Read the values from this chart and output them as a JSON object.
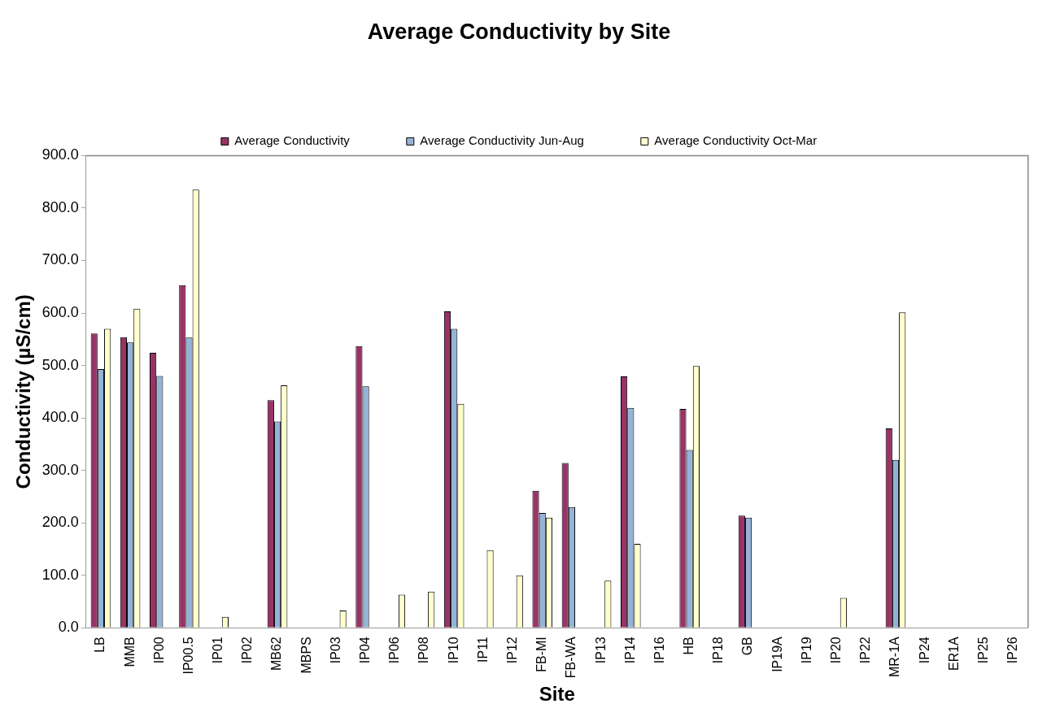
{
  "chart_data": {
    "type": "bar",
    "title": "Average Conductivity by Site",
    "xlabel": "Site",
    "ylabel": "Conductivity (µS/cm)",
    "categories": [
      "LB",
      "MMB",
      "IP00",
      "IP00.5",
      "IP01",
      "IP02",
      "MB62",
      "MBPS",
      "IP03",
      "IP04",
      "IP06",
      "IP08",
      "IP10",
      "IP11",
      "IP12",
      "FB-MI",
      "FB-WA",
      "IP13",
      "IP14",
      "IP16",
      "HB",
      "IP18",
      "GB",
      "IP19A",
      "IP19",
      "IP20",
      "IP22",
      "MR-1A",
      "IP24",
      "ER1A",
      "IP25",
      "IP26"
    ],
    "series": [
      {
        "name": "Average Conductivity",
        "color": "#993366",
        "values": [
          561,
          554,
          524,
          653,
          null,
          null,
          434,
          null,
          null,
          537,
          null,
          null,
          603,
          null,
          null,
          261,
          314,
          null,
          479,
          null,
          417,
          null,
          214,
          null,
          null,
          null,
          null,
          380,
          null,
          null,
          null,
          null
        ]
      },
      {
        "name": "Average Conductivity Jun-Aug",
        "color": "#95b3d7",
        "values": [
          493,
          544,
          480,
          553,
          null,
          null,
          393,
          null,
          null,
          460,
          null,
          null,
          570,
          null,
          null,
          219,
          230,
          null,
          419,
          null,
          339,
          null,
          210,
          null,
          null,
          null,
          null,
          320,
          null,
          null,
          null,
          null
        ]
      },
      {
        "name": "Average Conductivity Oct-Mar",
        "color": "#ffffcc",
        "values": [
          570,
          608,
          null,
          835,
          21,
          null,
          462,
          null,
          33,
          null,
          63,
          69,
          427,
          148,
          100,
          210,
          null,
          90,
          160,
          null,
          499,
          null,
          null,
          null,
          null,
          57,
          null,
          601,
          null,
          null,
          null,
          null
        ]
      }
    ],
    "ylim": [
      0,
      900
    ],
    "yticks": [
      {
        "value": 0,
        "label": "0.0"
      },
      {
        "value": 100,
        "label": "100.0"
      },
      {
        "value": 200,
        "label": "200.0"
      },
      {
        "value": 300,
        "label": "300.0"
      },
      {
        "value": 400,
        "label": "400.0"
      },
      {
        "value": 500,
        "label": "500.0"
      },
      {
        "value": 600,
        "label": "600.0"
      },
      {
        "value": 700,
        "label": "700.0"
      },
      {
        "value": 800,
        "label": "800.0"
      },
      {
        "value": 900,
        "label": "900.0"
      }
    ],
    "grid": false,
    "legend": "top"
  }
}
